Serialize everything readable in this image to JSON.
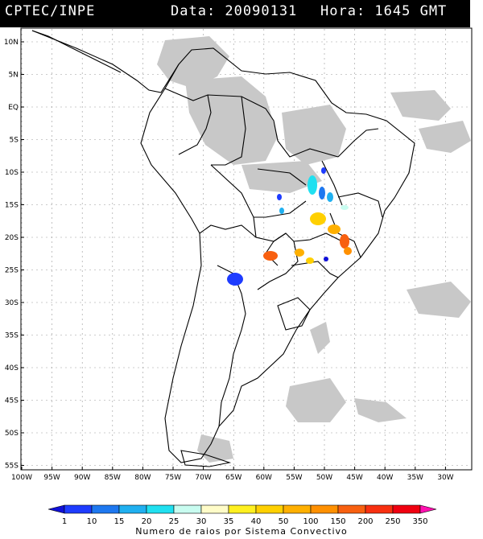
{
  "header": {
    "title": "CPTEC/INPE",
    "date_text": "Data: 20090131",
    "time_text": "Hora: 1645 GMT"
  },
  "map": {
    "lat_labels": [
      "10N",
      "5N",
      "EQ",
      "5S",
      "10S",
      "15S",
      "20S",
      "25S",
      "30S",
      "35S",
      "40S",
      "45S",
      "50S",
      "55S"
    ],
    "lon_labels": [
      "100W",
      "95W",
      "90W",
      "85W",
      "80W",
      "75W",
      "70W",
      "65W",
      "60W",
      "55W",
      "50W",
      "45W",
      "40W",
      "35W",
      "30W"
    ],
    "colors": {
      "cloud": "#c8c8c8",
      "border": "#000000",
      "grid": "#9a9a9a"
    }
  },
  "scale": {
    "labels": [
      "1",
      "10",
      "15",
      "20",
      "25",
      "30",
      "35",
      "40",
      "50",
      "100",
      "150",
      "200",
      "250",
      "350"
    ],
    "colors": [
      "#1010d8",
      "#1e3cff",
      "#1e78f0",
      "#20b0f0",
      "#20e0f0",
      "#c8fcf0",
      "#fffcc8",
      "#fff020",
      "#ffd000",
      "#ffb000",
      "#ff9000",
      "#f86010",
      "#f83010",
      "#f00010",
      "#ff10b0"
    ],
    "caption": "Numero de raios por Sistema Convectivo"
  }
}
